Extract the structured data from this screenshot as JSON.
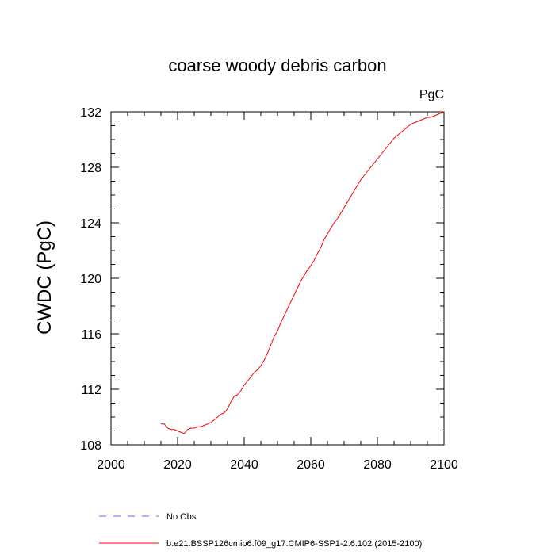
{
  "chart_data": {
    "type": "line",
    "title": "coarse woody debris carbon",
    "units": "PgC",
    "ylabel": "CWDC  (PgC)",
    "xlabel": "",
    "xlim": [
      2000,
      2100
    ],
    "ylim": [
      108,
      132
    ],
    "xticks": [
      2000,
      2020,
      2040,
      2060,
      2080,
      2100
    ],
    "yticks": [
      108,
      112,
      116,
      120,
      124,
      128,
      132
    ],
    "grid": false,
    "legend_position": "bottom-left",
    "series": [
      {
        "name": "No Obs",
        "color": "#6666ff",
        "style": "dashed",
        "x": [],
        "y": []
      },
      {
        "name": "b.e21.BSSP126cmip6.f09_g17.CMIP6-SSP1-2.6.102 (2015-2100)",
        "color": "#ff0000",
        "style": "solid",
        "x": [
          2015,
          2016,
          2017,
          2018,
          2019,
          2020,
          2021,
          2022,
          2023,
          2024,
          2025,
          2026,
          2027,
          2028,
          2029,
          2030,
          2031,
          2032,
          2033,
          2034,
          2035,
          2036,
          2037,
          2038,
          2039,
          2040,
          2041,
          2042,
          2043,
          2044,
          2045,
          2046,
          2047,
          2048,
          2049,
          2050,
          2051,
          2052,
          2053,
          2054,
          2055,
          2056,
          2057,
          2058,
          2059,
          2060,
          2061,
          2062,
          2063,
          2064,
          2065,
          2066,
          2067,
          2068,
          2069,
          2070,
          2071,
          2072,
          2073,
          2074,
          2075,
          2076,
          2077,
          2078,
          2079,
          2080,
          2081,
          2082,
          2083,
          2084,
          2085,
          2086,
          2087,
          2088,
          2089,
          2090,
          2091,
          2092,
          2093,
          2094,
          2095,
          2096,
          2097,
          2098,
          2099,
          2100
        ],
        "y": [
          109.5,
          109.5,
          109.2,
          109.1,
          109.1,
          109.0,
          108.9,
          108.8,
          109.1,
          109.2,
          109.2,
          109.3,
          109.3,
          109.4,
          109.5,
          109.6,
          109.8,
          110.0,
          110.2,
          110.3,
          110.6,
          111.1,
          111.5,
          111.6,
          111.9,
          112.3,
          112.6,
          112.9,
          113.2,
          113.4,
          113.7,
          114.1,
          114.6,
          115.2,
          115.8,
          116.2,
          116.8,
          117.3,
          117.8,
          118.3,
          118.8,
          119.3,
          119.8,
          120.2,
          120.6,
          120.9,
          121.3,
          121.8,
          122.2,
          122.8,
          123.2,
          123.6,
          124.0,
          124.3,
          124.7,
          125.1,
          125.5,
          125.9,
          126.3,
          126.7,
          127.1,
          127.4,
          127.7,
          128.0,
          128.3,
          128.6,
          128.9,
          129.2,
          129.5,
          129.8,
          130.1,
          130.3,
          130.5,
          130.7,
          130.9,
          131.1,
          131.2,
          131.3,
          131.4,
          131.5,
          131.6,
          131.6,
          131.7,
          131.8,
          131.9,
          132.0
        ]
      }
    ]
  }
}
